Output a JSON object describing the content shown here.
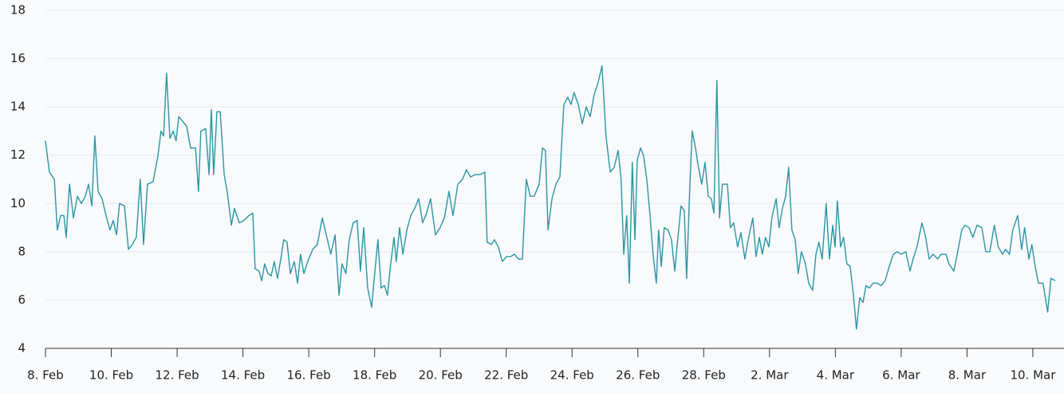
{
  "chart_data": {
    "type": "line",
    "grid": true,
    "xlim": [
      0,
      30.68
    ],
    "ylim": [
      4,
      18
    ],
    "yticks": [
      4,
      6,
      8,
      10,
      12,
      14,
      16,
      18
    ],
    "xticks": [
      {
        "value": 0,
        "label": "8. Feb"
      },
      {
        "value": 2,
        "label": "10. Feb"
      },
      {
        "value": 4,
        "label": "12. Feb"
      },
      {
        "value": 6,
        "label": "14. Feb"
      },
      {
        "value": 8,
        "label": "16. Feb"
      },
      {
        "value": 10,
        "label": "18. Feb"
      },
      {
        "value": 12,
        "label": "20. Feb"
      },
      {
        "value": 14,
        "label": "22. Feb"
      },
      {
        "value": 16,
        "label": "24. Feb"
      },
      {
        "value": 18,
        "label": "26. Feb"
      },
      {
        "value": 20,
        "label": "28. Feb"
      },
      {
        "value": 22,
        "label": "2. Mar"
      },
      {
        "value": 24,
        "label": "4. Mar"
      },
      {
        "value": 26,
        "label": "6. Mar"
      },
      {
        "value": 28,
        "label": "8. Mar"
      },
      {
        "value": 30,
        "label": "10. Mar"
      }
    ],
    "x": [
      0,
      0.12,
      0.27,
      0.36,
      0.46,
      0.56,
      0.63,
      0.73,
      0.85,
      0.97,
      1.09,
      1.21,
      1.31,
      1.41,
      1.5,
      1.6,
      1.72,
      1.84,
      1.96,
      2.06,
      2.16,
      2.25,
      2.4,
      2.52,
      2.64,
      2.76,
      2.88,
      2.98,
      3.1,
      3.27,
      3.42,
      3.51,
      3.59,
      3.68,
      3.78,
      3.88,
      3.97,
      4.05,
      4.17,
      4.29,
      4.41,
      4.56,
      4.65,
      4.72,
      4.87,
      4.97,
      5.04,
      5.11,
      5.21,
      5.31,
      5.43,
      5.52,
      5.65,
      5.74,
      5.89,
      6.03,
      6.18,
      6.3,
      6.37,
      6.49,
      6.57,
      6.66,
      6.76,
      6.86,
      6.95,
      7.05,
      7.15,
      7.24,
      7.34,
      7.44,
      7.56,
      7.66,
      7.75,
      7.85,
      7.97,
      8.12,
      8.26,
      8.41,
      8.55,
      8.67,
      8.8,
      8.92,
      9.01,
      9.13,
      9.23,
      9.35,
      9.47,
      9.57,
      9.67,
      9.79,
      9.91,
      10.01,
      10.1,
      10.2,
      10.3,
      10.39,
      10.49,
      10.59,
      10.66,
      10.76,
      10.86,
      10.98,
      11.1,
      11.22,
      11.34,
      11.46,
      11.58,
      11.7,
      11.85,
      11.99,
      12.12,
      12.26,
      12.38,
      12.53,
      12.67,
      12.79,
      12.91,
      13.06,
      13.21,
      13.35,
      13.42,
      13.55,
      13.64,
      13.76,
      13.88,
      14.01,
      14.13,
      14.25,
      14.37,
      14.49,
      14.61,
      14.73,
      14.85,
      15.0,
      15.1,
      15.19,
      15.27,
      15.39,
      15.51,
      15.63,
      15.75,
      15.87,
      15.97,
      16.06,
      16.19,
      16.31,
      16.43,
      16.55,
      16.67,
      16.79,
      16.91,
      17.03,
      17.16,
      17.28,
      17.4,
      17.49,
      17.57,
      17.66,
      17.74,
      17.83,
      17.91,
      17.98,
      18.08,
      18.17,
      18.27,
      18.37,
      18.46,
      18.56,
      18.63,
      18.71,
      18.8,
      18.92,
      19.02,
      19.12,
      19.21,
      19.31,
      19.41,
      19.48,
      19.58,
      19.65,
      19.75,
      19.84,
      19.94,
      20.04,
      20.14,
      20.23,
      20.31,
      20.4,
      20.48,
      20.57,
      20.72,
      20.81,
      20.91,
      21.03,
      21.13,
      21.25,
      21.35,
      21.49,
      21.59,
      21.69,
      21.78,
      21.88,
      21.98,
      22.07,
      22.2,
      22.29,
      22.39,
      22.49,
      22.58,
      22.68,
      22.78,
      22.87,
      22.97,
      23.09,
      23.19,
      23.31,
      23.41,
      23.5,
      23.6,
      23.72,
      23.82,
      23.92,
      23.99,
      24.06,
      24.16,
      24.25,
      24.35,
      24.45,
      24.55,
      24.64,
      24.74,
      24.84,
      24.93,
      25.03,
      25.15,
      25.27,
      25.39,
      25.51,
      25.64,
      25.76,
      25.88,
      26.0,
      26.14,
      26.27,
      26.36,
      26.48,
      26.63,
      26.73,
      26.85,
      26.97,
      27.11,
      27.21,
      27.36,
      27.45,
      27.6,
      27.69,
      27.84,
      27.94,
      28.06,
      28.18,
      28.3,
      28.45,
      28.57,
      28.69,
      28.83,
      28.95,
      29.08,
      29.17,
      29.29,
      29.39,
      29.54,
      29.66,
      29.75,
      29.88,
      29.97,
      30.07,
      30.17,
      30.31,
      30.45,
      30.55,
      30.68
    ],
    "series": [
      {
        "color": "#2a95a3",
        "values": [
          12.6,
          11.3,
          11.0,
          8.9,
          9.5,
          9.5,
          8.6,
          10.8,
          9.4,
          10.3,
          10.0,
          10.3,
          10.8,
          9.9,
          12.8,
          10.5,
          10.2,
          9.5,
          8.9,
          9.3,
          8.7,
          10.0,
          9.9,
          8.1,
          8.3,
          8.6,
          11.0,
          8.3,
          10.8,
          10.9,
          12.0,
          13.0,
          12.8,
          15.4,
          12.7,
          13.0,
          12.6,
          13.6,
          13.4,
          13.2,
          12.3,
          12.3,
          10.5,
          13.0,
          13.1,
          11.2,
          13.9,
          11.2,
          13.8,
          13.8,
          11.2,
          10.5,
          9.1,
          9.8,
          9.2,
          9.3,
          9.5,
          9.6,
          7.3,
          7.2,
          6.8,
          7.5,
          7.1,
          7.0,
          7.6,
          6.9,
          7.7,
          8.5,
          8.4,
          7.1,
          7.6,
          6.7,
          7.9,
          7.1,
          7.6,
          8.1,
          8.3,
          9.4,
          8.6,
          7.9,
          8.7,
          6.2,
          7.5,
          7.1,
          8.5,
          9.2,
          9.3,
          7.2,
          9.0,
          6.5,
          5.7,
          7.2,
          8.5,
          6.5,
          6.6,
          6.2,
          7.5,
          8.6,
          7.6,
          9.0,
          7.9,
          8.9,
          9.5,
          9.8,
          10.2,
          9.2,
          9.6,
          10.2,
          8.7,
          9.0,
          9.4,
          10.5,
          9.5,
          10.8,
          11.0,
          11.4,
          11.1,
          11.2,
          11.2,
          11.3,
          8.4,
          8.3,
          8.5,
          8.2,
          7.6,
          7.8,
          7.8,
          7.9,
          7.7,
          7.7,
          11.0,
          10.3,
          10.3,
          10.8,
          12.3,
          12.2,
          8.9,
          10.2,
          10.8,
          11.1,
          14.1,
          14.4,
          14.1,
          14.6,
          14.1,
          13.3,
          14.0,
          13.6,
          14.5,
          15.0,
          15.7,
          12.8,
          11.3,
          11.5,
          12.2,
          11.0,
          7.9,
          9.5,
          6.7,
          11.7,
          8.5,
          11.8,
          12.3,
          12.0,
          11.0,
          9.5,
          7.9,
          6.7,
          8.9,
          7.4,
          9.0,
          8.9,
          8.5,
          7.2,
          8.5,
          9.9,
          9.7,
          6.9,
          10.8,
          13.0,
          12.3,
          11.5,
          10.8,
          11.7,
          10.3,
          10.2,
          9.6,
          15.1,
          9.4,
          10.8,
          10.8,
          9.0,
          9.2,
          8.2,
          8.8,
          7.7,
          8.5,
          9.4,
          7.8,
          8.6,
          7.9,
          8.6,
          8.2,
          9.4,
          10.2,
          9.0,
          9.8,
          10.3,
          11.5,
          8.9,
          8.5,
          7.1,
          8.0,
          7.5,
          6.7,
          6.4,
          7.9,
          8.4,
          7.7,
          10.0,
          7.7,
          9.1,
          8.2,
          10.1,
          8.2,
          8.6,
          7.5,
          7.4,
          6.2,
          4.8,
          6.1,
          5.9,
          6.6,
          6.5,
          6.7,
          6.7,
          6.6,
          6.8,
          7.4,
          7.9,
          8.0,
          7.9,
          8.0,
          7.2,
          7.7,
          8.2,
          9.2,
          8.7,
          7.7,
          7.9,
          7.7,
          7.9,
          7.9,
          7.5,
          7.2,
          7.8,
          8.9,
          9.1,
          9.0,
          8.6,
          9.1,
          9.0,
          8.0,
          8.0,
          9.1,
          8.2,
          7.9,
          8.1,
          7.9,
          8.9,
          9.5,
          8.1,
          9.0,
          7.7,
          8.3,
          7.4,
          6.7,
          6.7,
          5.5,
          6.9,
          6.8
        ]
      }
    ]
  }
}
